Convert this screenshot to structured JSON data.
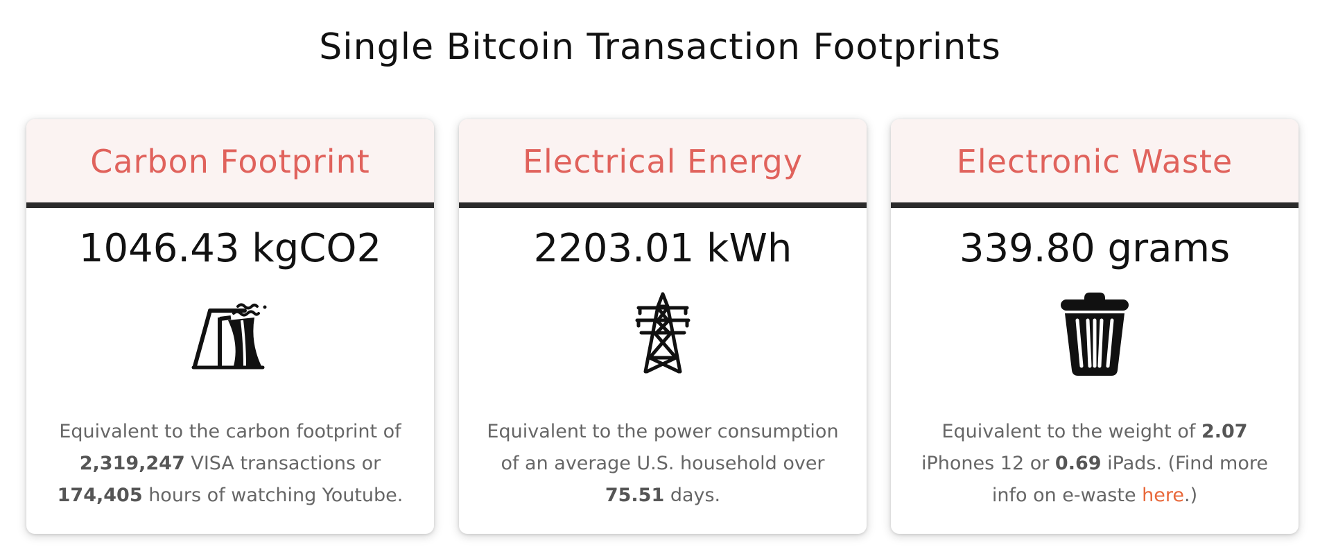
{
  "page_title": "Single Bitcoin Transaction Footprints",
  "accent_color": "#e0625c",
  "link_color": "#e8683a",
  "cards": [
    {
      "header": "Carbon Footprint",
      "value": "1046.43 kgCO2",
      "icon": "factory-icon",
      "desc": {
        "text_1": "Equivalent to the carbon footprint of ",
        "num_1": "2,319,247",
        "text_2": " VISA transactions or ",
        "num_2": "174,405",
        "text_3": " hours of watching Youtube."
      }
    },
    {
      "header": "Electrical Energy",
      "value": "2203.01 kWh",
      "icon": "power-tower-icon",
      "desc": {
        "text_1": "Equivalent to the power consumption of an average U.S. household over ",
        "num_1": "75.51",
        "text_2": " days."
      }
    },
    {
      "header": "Electronic Waste",
      "value": "339.80 grams",
      "icon": "trash-can-icon",
      "desc": {
        "text_1": "Equivalent to the weight of ",
        "num_1": "2.07",
        "text_2": " iPhones 12 or ",
        "num_2": "0.69",
        "text_3": " iPads. (Find more info on e-waste ",
        "link": "here",
        "text_4": ".)"
      }
    }
  ]
}
